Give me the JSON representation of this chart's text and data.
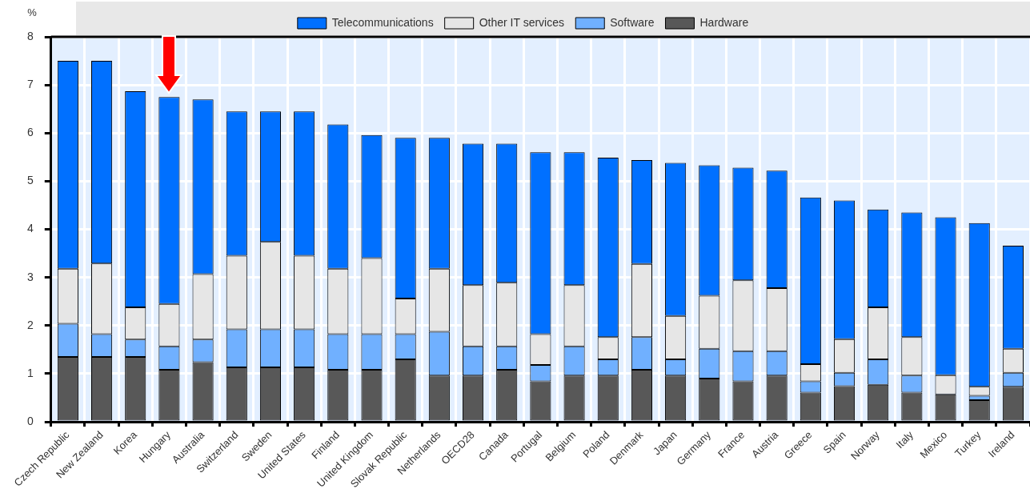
{
  "chart_data": {
    "type": "bar",
    "stacked": true,
    "ylabel": "%",
    "legend": "top",
    "grid": true,
    "categories": [
      "Czech Republic",
      "New Zealand",
      "Korea",
      "Hungary",
      "Australia",
      "Switzerland",
      "Sweden",
      "United States",
      "Finland",
      "United Kingdom",
      "Slovak Republic",
      "Netherlands",
      "OECD28",
      "Canada",
      "Portugal",
      "Belgium",
      "Poland",
      "Denmark",
      "Japan",
      "Germany",
      "France",
      "Austria",
      "Greece",
      "Spain",
      "Norway",
      "Italy",
      "Mexico",
      "Turkey",
      "Ireland"
    ],
    "ylim": [
      0,
      8
    ],
    "yticks": [
      0,
      1,
      2,
      3,
      4,
      5,
      6,
      7,
      8
    ],
    "series": [
      {
        "name": "Hardware",
        "color": "#585858",
        "values": [
          1.35,
          1.35,
          1.35,
          1.08,
          1.24,
          1.13,
          1.13,
          1.13,
          1.08,
          1.08,
          1.3,
          0.96,
          0.96,
          1.08,
          0.84,
          0.96,
          0.96,
          1.08,
          0.96,
          0.9,
          0.84,
          0.96,
          0.61,
          0.74,
          0.77,
          0.61,
          0.57,
          0.45,
          0.73
        ]
      },
      {
        "name": "Software",
        "color": "#70b0ff",
        "values": [
          0.69,
          0.47,
          0.36,
          0.49,
          0.47,
          0.79,
          0.79,
          0.79,
          0.74,
          0.74,
          0.52,
          0.91,
          0.61,
          0.49,
          0.34,
          0.61,
          0.34,
          0.68,
          0.34,
          0.62,
          0.63,
          0.51,
          0.23,
          0.28,
          0.53,
          0.35,
          null,
          0.09,
          0.29
        ]
      },
      {
        "name": "Other IT services",
        "color": "#e6e6e6",
        "values": [
          1.14,
          1.47,
          0.67,
          0.88,
          1.36,
          1.53,
          1.82,
          1.53,
          1.36,
          1.58,
          0.74,
          1.31,
          1.27,
          1.32,
          0.64,
          1.27,
          0.46,
          1.52,
          0.9,
          1.1,
          1.47,
          1.31,
          0.36,
          0.7,
          1.08,
          0.8,
          0.4,
          0.19,
          0.5
        ]
      },
      {
        "name": "Telecommunications",
        "color": "#0070ff",
        "values": [
          4.32,
          4.21,
          4.49,
          4.3,
          3.63,
          3.0,
          2.71,
          3.0,
          3.0,
          2.56,
          3.34,
          2.72,
          2.94,
          2.89,
          3.78,
          2.76,
          3.73,
          2.16,
          3.18,
          2.71,
          2.34,
          2.44,
          3.46,
          2.88,
          2.03,
          2.59,
          3.28,
          3.4,
          2.14
        ]
      }
    ]
  }
}
